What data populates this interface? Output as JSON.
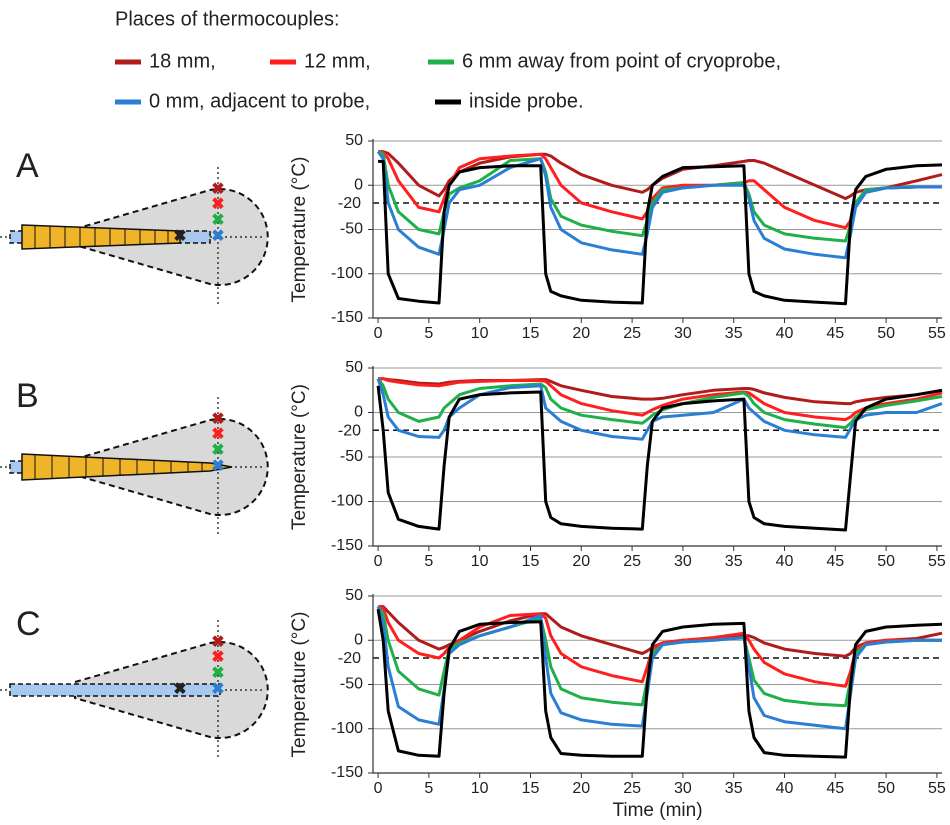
{
  "legend_title": "Places of thermocouples:",
  "chart_data": [
    {
      "type": "line",
      "title": "A",
      "y_label": "Temperature (°C)",
      "x": [
        0,
        0.5,
        1,
        2,
        4,
        6,
        6.5,
        7,
        8,
        10,
        13,
        16,
        16.5,
        17,
        18,
        20,
        23,
        26,
        26.5,
        27,
        28,
        30,
        33,
        36,
        36.5,
        37,
        38,
        40,
        43,
        46,
        46.5,
        47,
        48,
        50,
        53,
        55.5
      ],
      "xlim": [
        -0.5,
        55.5
      ],
      "xticks": [
        0,
        5,
        10,
        15,
        20,
        25,
        30,
        35,
        40,
        45,
        50,
        55
      ],
      "ylim": [
        -150,
        50
      ],
      "yticks": [
        -150,
        -100,
        -50,
        0,
        50
      ],
      "ref_line": -20,
      "grid": true,
      "series": [
        {
          "name": "18 mm,",
          "color": "#b01c1c",
          "values": [
            38,
            38,
            36,
            25,
            0,
            -12,
            -5,
            5,
            15,
            25,
            32,
            35,
            35,
            33,
            25,
            12,
            0,
            -8,
            -5,
            0,
            8,
            18,
            22,
            27,
            28,
            28,
            25,
            15,
            0,
            -15,
            -12,
            -8,
            -5,
            -3,
            5,
            12
          ]
        },
        {
          "name": "12 mm,",
          "color": "#ff1f1f",
          "values": [
            38,
            37,
            30,
            5,
            -25,
            -30,
            -15,
            0,
            20,
            30,
            33,
            35,
            30,
            20,
            0,
            -20,
            -30,
            -38,
            -30,
            -15,
            -3,
            0,
            0,
            3,
            5,
            5,
            -5,
            -25,
            -40,
            -48,
            -40,
            -20,
            -8,
            -3,
            -2,
            -2
          ]
        },
        {
          "name": "6 mm away from point of cryoprobe,",
          "color": "#1fb04a",
          "values": [
            38,
            35,
            0,
            -30,
            -50,
            -55,
            -30,
            -10,
            -3,
            5,
            28,
            30,
            15,
            -15,
            -35,
            -45,
            -52,
            -57,
            -40,
            -20,
            -5,
            -3,
            0,
            3,
            -10,
            -30,
            -45,
            -55,
            -60,
            -63,
            -45,
            -20,
            -5,
            -3,
            -2,
            -2
          ]
        },
        {
          "name": "0 mm, adjacent to probe,",
          "color": "#2a7fd4",
          "values": [
            38,
            30,
            -20,
            -50,
            -70,
            -78,
            -50,
            -20,
            -5,
            0,
            20,
            30,
            10,
            -25,
            -50,
            -65,
            -73,
            -78,
            -55,
            -25,
            -8,
            -3,
            0,
            0,
            -15,
            -40,
            -60,
            -72,
            -78,
            -82,
            -55,
            -25,
            -8,
            -3,
            -2,
            -2
          ]
        },
        {
          "name": "inside probe.",
          "color": "#000000",
          "values": [
            27,
            27,
            -100,
            -128,
            -131,
            -133,
            -30,
            0,
            15,
            20,
            22,
            22,
            -100,
            -120,
            -125,
            -130,
            -132,
            -133,
            -30,
            0,
            10,
            20,
            21,
            22,
            -100,
            -120,
            -125,
            -130,
            -132,
            -134,
            -40,
            -5,
            10,
            18,
            22,
            23
          ]
        }
      ]
    },
    {
      "type": "line",
      "title": "B",
      "y_label": "Temperature (°C)",
      "x": [
        0,
        0.5,
        1,
        2,
        4,
        6,
        6.5,
        7,
        8,
        10,
        13,
        16,
        16.5,
        17,
        18,
        20,
        23,
        26,
        26.5,
        27,
        28,
        30,
        33,
        36,
        36.5,
        37,
        38,
        40,
        43,
        46,
        46.5,
        47,
        48,
        50,
        53,
        55.5
      ],
      "xlim": [
        -0.5,
        55.5
      ],
      "xticks": [
        0,
        5,
        10,
        15,
        20,
        25,
        30,
        35,
        40,
        45,
        50,
        55
      ],
      "ylim": [
        -150,
        50
      ],
      "yticks": [
        -150,
        -100,
        -50,
        0,
        50
      ],
      "ref_line": -20,
      "grid": true,
      "series": [
        {
          "color": "#b01c1c",
          "values": [
            38,
            38,
            37,
            36,
            33,
            32,
            33,
            34,
            35,
            36,
            36,
            37,
            37,
            35,
            30,
            25,
            18,
            15,
            15,
            15,
            16,
            20,
            25,
            27,
            27,
            26,
            22,
            17,
            12,
            10,
            10,
            12,
            14,
            17,
            20,
            25
          ]
        },
        {
          "color": "#ff1f1f",
          "values": [
            38,
            38,
            36,
            34,
            31,
            30,
            31,
            32,
            34,
            35,
            36,
            36,
            35,
            30,
            20,
            10,
            2,
            -3,
            0,
            3,
            8,
            15,
            20,
            23,
            22,
            18,
            10,
            0,
            -5,
            -8,
            -5,
            0,
            5,
            10,
            15,
            22
          ]
        },
        {
          "color": "#1fb04a",
          "values": [
            38,
            30,
            15,
            0,
            -10,
            -5,
            5,
            10,
            20,
            27,
            30,
            32,
            28,
            15,
            5,
            -3,
            -8,
            -12,
            -8,
            -3,
            3,
            10,
            17,
            22,
            18,
            10,
            0,
            -8,
            -13,
            -17,
            -12,
            -5,
            3,
            8,
            13,
            18
          ]
        },
        {
          "color": "#2a7fd4",
          "values": [
            38,
            20,
            -5,
            -20,
            -27,
            -28,
            -20,
            -5,
            5,
            20,
            28,
            30,
            5,
            0,
            -10,
            -20,
            -27,
            -30,
            -20,
            -10,
            -5,
            -3,
            0,
            15,
            5,
            0,
            -10,
            -20,
            -25,
            -28,
            -18,
            -8,
            -3,
            0,
            0,
            10
          ]
        },
        {
          "color": "#000000",
          "values": [
            30,
            -20,
            -90,
            -120,
            -128,
            -131,
            -60,
            -5,
            15,
            20,
            22,
            23,
            -100,
            -118,
            -125,
            -128,
            -130,
            -131,
            -60,
            -10,
            5,
            10,
            13,
            15,
            -100,
            -118,
            -125,
            -128,
            -130,
            -132,
            -70,
            -10,
            5,
            15,
            20,
            25
          ]
        }
      ]
    },
    {
      "type": "line",
      "title": "C",
      "y_label": "Temperature (°C)",
      "x_label": "Time (min)",
      "x": [
        0,
        0.5,
        1,
        2,
        4,
        6,
        6.5,
        7,
        8,
        10,
        13,
        16,
        16.5,
        17,
        18,
        20,
        23,
        26,
        26.5,
        27,
        28,
        30,
        33,
        36,
        36.5,
        37,
        38,
        40,
        43,
        46,
        46.5,
        47,
        48,
        50,
        53,
        55.5
      ],
      "xlim": [
        -0.5,
        55.5
      ],
      "xticks": [
        0,
        5,
        10,
        15,
        20,
        25,
        30,
        35,
        40,
        45,
        50,
        55
      ],
      "ylim": [
        -150,
        50
      ],
      "yticks": [
        -150,
        -100,
        -50,
        0,
        50
      ],
      "ref_line": -20,
      "grid": true,
      "series": [
        {
          "color": "#b01c1c",
          "values": [
            38,
            38,
            32,
            20,
            0,
            -10,
            -8,
            -5,
            0,
            10,
            22,
            30,
            30,
            25,
            15,
            5,
            -5,
            -15,
            -12,
            -8,
            -3,
            0,
            2,
            5,
            5,
            3,
            -3,
            -10,
            -15,
            -18,
            -15,
            -8,
            -3,
            0,
            2,
            8
          ]
        },
        {
          "color": "#ff1f1f",
          "values": [
            38,
            36,
            20,
            0,
            -15,
            -20,
            -15,
            -8,
            0,
            15,
            28,
            30,
            25,
            5,
            -15,
            -30,
            -40,
            -47,
            -30,
            -10,
            -3,
            0,
            3,
            8,
            0,
            -10,
            -25,
            -38,
            -47,
            -52,
            -35,
            -12,
            -3,
            0,
            0,
            0
          ]
        },
        {
          "color": "#1fb04a",
          "values": [
            38,
            30,
            0,
            -35,
            -55,
            -62,
            -35,
            -10,
            -3,
            5,
            15,
            25,
            0,
            -30,
            -55,
            -65,
            -70,
            -73,
            -45,
            -15,
            -5,
            -2,
            0,
            3,
            -20,
            -45,
            -60,
            -68,
            -72,
            -74,
            -45,
            -15,
            -5,
            -2,
            0,
            0
          ]
        },
        {
          "color": "#2a7fd4",
          "values": [
            38,
            20,
            -30,
            -75,
            -90,
            -95,
            -55,
            -15,
            -5,
            5,
            15,
            28,
            -20,
            -60,
            -82,
            -90,
            -95,
            -97,
            -60,
            -20,
            -5,
            -2,
            0,
            3,
            -30,
            -65,
            -85,
            -92,
            -96,
            -100,
            -60,
            -20,
            -5,
            -2,
            0,
            0
          ]
        },
        {
          "color": "#000000",
          "values": [
            35,
            0,
            -80,
            -125,
            -130,
            -131,
            -60,
            -10,
            10,
            18,
            20,
            21,
            -80,
            -110,
            -128,
            -130,
            -131,
            -131,
            -50,
            -5,
            10,
            15,
            18,
            19,
            -80,
            -110,
            -127,
            -130,
            -131,
            -132,
            -50,
            -5,
            10,
            15,
            17,
            18
          ]
        }
      ]
    }
  ]
}
